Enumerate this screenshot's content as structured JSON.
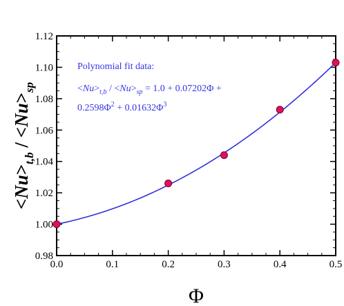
{
  "chart_data": {
    "type": "scatter",
    "title": "",
    "xlabel": "Φ",
    "ylabel": {
      "a1": "<",
      "a2": "Nu",
      "a3": ">",
      "a4": "t,b",
      "a5": " / ",
      "b1": "<",
      "b2": "Nu",
      "b3": ">",
      "b4": "sp"
    },
    "xlim": [
      0.0,
      0.5
    ],
    "ylim": [
      0.98,
      1.12
    ],
    "x_ticks": [
      "0.0",
      "0.1",
      "0.2",
      "0.3",
      "0.4",
      "0.5"
    ],
    "y_ticks": [
      "0.98",
      "1.00",
      "1.02",
      "1.04",
      "1.06",
      "1.08",
      "1.10",
      "1.12"
    ],
    "grid": false,
    "series": [
      {
        "kind": "points",
        "x": [
          0.0,
          0.2,
          0.3,
          0.4,
          0.5
        ],
        "y": [
          1.0,
          1.026,
          1.044,
          1.073,
          1.103
        ],
        "color": "#e0105e",
        "edge_color": "#7a0030"
      },
      {
        "kind": "fit_curve",
        "coefficients": [
          1.0,
          0.07202,
          0.2598,
          0.01632
        ],
        "color": "#2f2fd9"
      }
    ],
    "annotation": {
      "line1": "Polynomial fit data:",
      "line2": {
        "p1": "<",
        "p2": "Nu",
        "p3": ">",
        "p4": "t,b",
        "p5": " / ",
        "p6": "<",
        "p7": "Nu",
        "p8": ">",
        "p9": "sp",
        "p10": " = 1.0 + 0.07202Φ +"
      },
      "line3": {
        "p1": "0.2598Φ",
        "p2": "2",
        "p3": " + 0.01632Φ",
        "p4": "3"
      }
    }
  }
}
